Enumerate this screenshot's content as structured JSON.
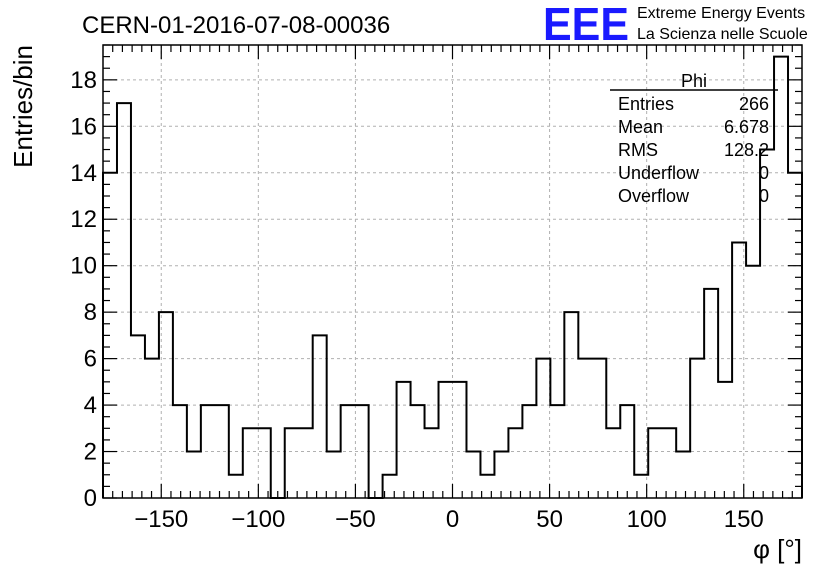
{
  "run_title": "CERN-01-2016-07-08-00036",
  "logo": {
    "mark": "EEE",
    "line1": "Extreme Energy Events",
    "line2": "La Scienza nelle Scuole",
    "color": "#1a1aff"
  },
  "stats": {
    "title": "Phi",
    "rows": [
      {
        "label": "Entries",
        "value": "266"
      },
      {
        "label": "Mean",
        "value": "6.678"
      },
      {
        "label": "RMS",
        "value": "128.2"
      },
      {
        "label": "Underflow",
        "value": "0"
      },
      {
        "label": "Overflow",
        "value": "0"
      }
    ]
  },
  "chart_data": {
    "type": "histogram",
    "title": "CERN-01-2016-07-08-00036",
    "xlabel": "φ [°]",
    "ylabel": "Entries/bin",
    "xlim": [
      -180,
      180
    ],
    "ylim": [
      0,
      19.5
    ],
    "bin_width": 7.2,
    "bin_start": -180,
    "values": [
      14,
      17,
      7,
      6,
      8,
      4,
      2,
      4,
      4,
      1,
      3,
      3,
      0,
      3,
      3,
      7,
      2,
      4,
      4,
      0,
      1,
      5,
      4,
      3,
      5,
      5,
      2,
      1,
      2,
      3,
      4,
      6,
      4,
      8,
      6,
      6,
      3,
      4,
      1,
      3,
      3,
      2,
      6,
      9,
      5,
      11,
      10,
      15,
      19,
      14
    ],
    "xticks": [
      -150,
      -100,
      -50,
      0,
      50,
      100,
      150
    ],
    "xtick_labels": [
      "−150",
      "−100",
      "−50",
      "0",
      "50",
      "100",
      "150"
    ],
    "yticks": [
      0,
      2,
      4,
      6,
      8,
      10,
      12,
      14,
      16,
      18
    ],
    "ytick_labels": [
      "0",
      "2",
      "4",
      "6",
      "8",
      "10",
      "12",
      "14",
      "16",
      "18"
    ],
    "grid": true,
    "legend": "none"
  }
}
